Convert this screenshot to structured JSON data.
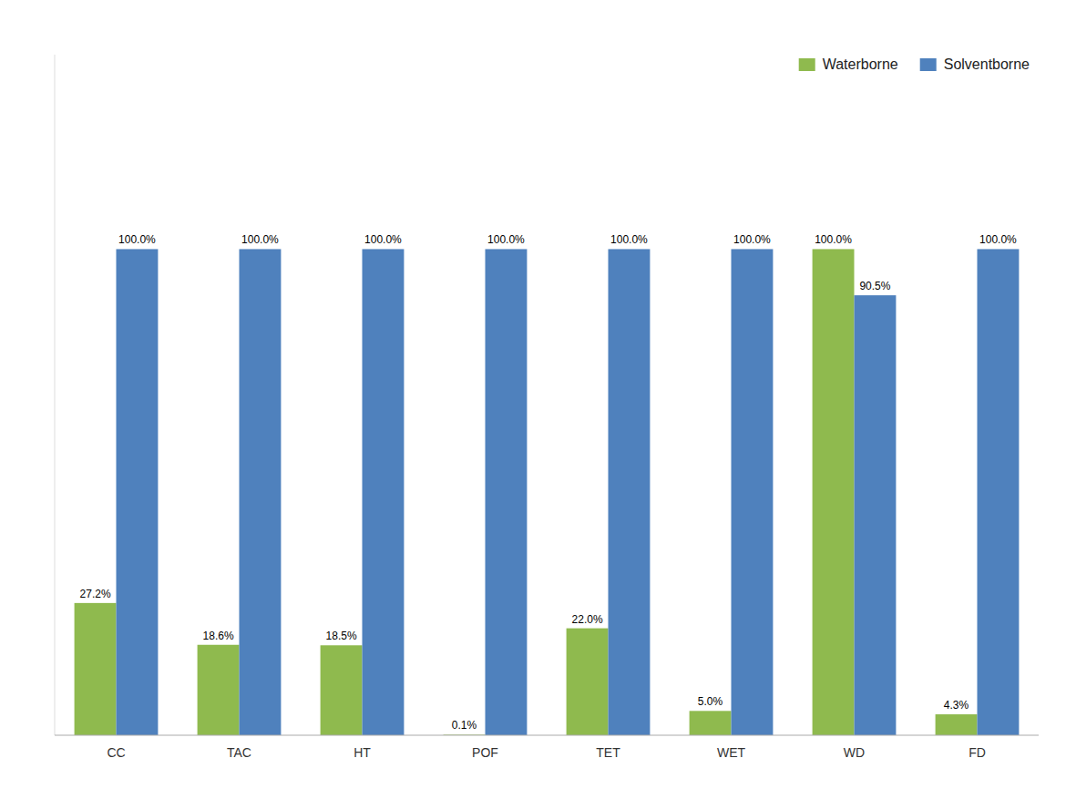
{
  "chart_data": {
    "type": "bar",
    "categories": [
      "CC",
      "TAC",
      "HT",
      "POF",
      "TET",
      "WET",
      "WD",
      "FD"
    ],
    "series": [
      {
        "name": "Waterborne",
        "color": "#8fba4e",
        "values": [
          27.2,
          18.6,
          18.5,
          0.1,
          22.0,
          5.0,
          100.0,
          4.3
        ],
        "value_labels": [
          "27.2%",
          "18.6%",
          "18.5%",
          "0.1%",
          "22.0%",
          "5.0%",
          "100.0%",
          "4.3%"
        ]
      },
      {
        "name": "Solventborne",
        "color": "#4f81bd",
        "values": [
          100.0,
          100.0,
          100.0,
          100.0,
          100.0,
          100.0,
          90.5,
          100.0
        ],
        "value_labels": [
          "100.0%",
          "100.0%",
          "100.0%",
          "100.0%",
          "100.0%",
          "100.0%",
          "90.5%",
          "100.0%"
        ]
      }
    ],
    "ylim": [
      0,
      140
    ],
    "data_labels": true,
    "tick_labels": "x",
    "legend": "upper right",
    "grid": false
  }
}
